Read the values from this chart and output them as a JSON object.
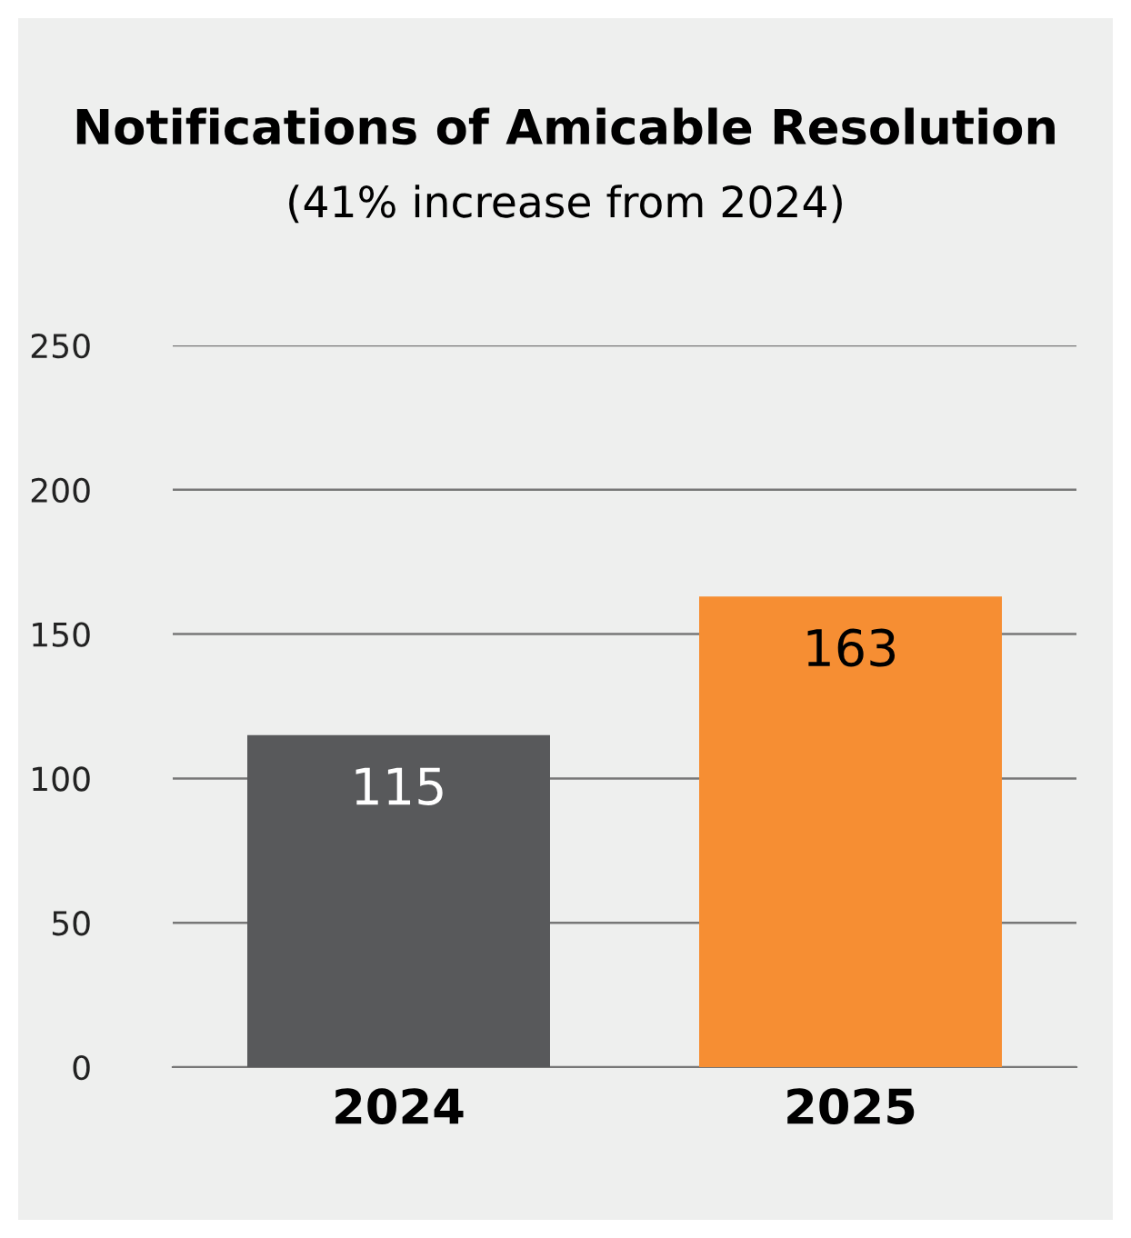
{
  "chart_data": {
    "type": "bar",
    "title": "Notifications of Amicable Resolution",
    "subtitle": "(41% increase from 2024)",
    "categories": [
      "2024",
      "2025"
    ],
    "values": [
      115,
      163
    ],
    "colors": [
      "#58595b",
      "#f68e33"
    ],
    "ylim": [
      0,
      250
    ],
    "yticks": [
      0,
      50,
      100,
      150,
      200,
      250
    ],
    "grid": "y",
    "data_labels": true
  }
}
